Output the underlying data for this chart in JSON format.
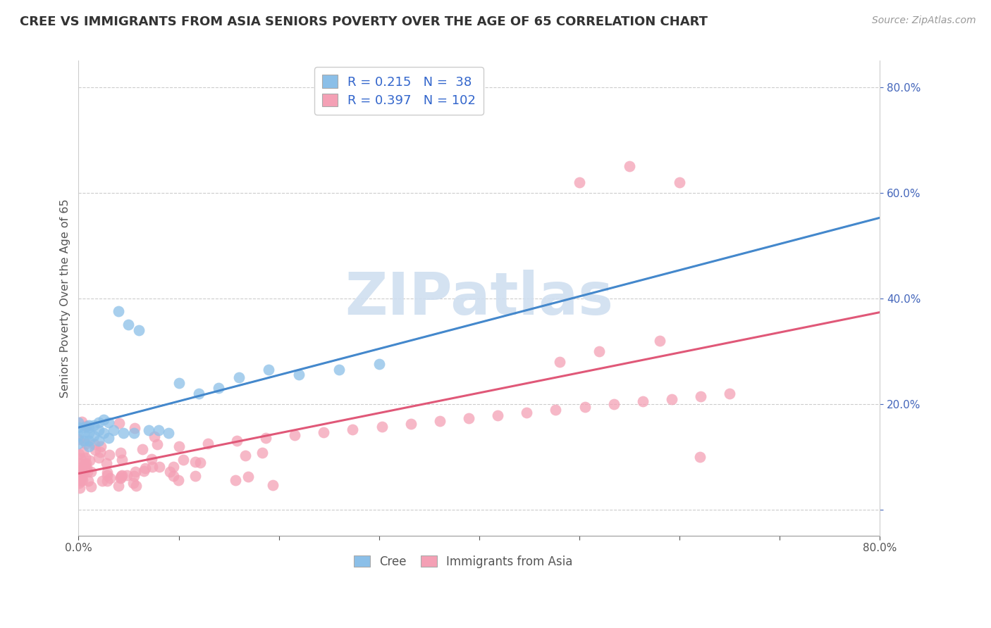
{
  "title": "CREE VS IMMIGRANTS FROM ASIA SENIORS POVERTY OVER THE AGE OF 65 CORRELATION CHART",
  "source": "Source: ZipAtlas.com",
  "ylabel": "Seniors Poverty Over the Age of 65",
  "xlim": [
    0,
    0.8
  ],
  "ylim": [
    -0.05,
    0.85
  ],
  "cree_R": 0.215,
  "cree_N": 38,
  "asia_R": 0.397,
  "asia_N": 102,
  "cree_color": "#8bbfe8",
  "cree_line_color": "#4488cc",
  "cree_dash_color": "#99bbdd",
  "asia_color": "#f4a0b5",
  "asia_line_color": "#e05878",
  "legend_color": "#3366cc",
  "watermark_color": "#d0dff0",
  "right_tick_color": "#4466bb"
}
